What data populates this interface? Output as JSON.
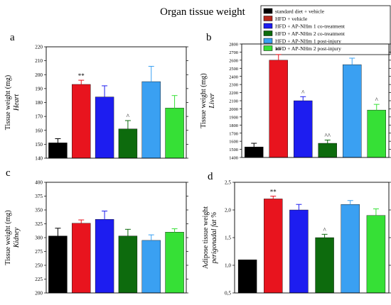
{
  "figure": {
    "title": "Organ tissue weight",
    "legend": {
      "placement": "top-right",
      "entries": [
        {
          "label": "standard diet + vehicle",
          "color": "#000000"
        },
        {
          "label": "HFD + vehicle",
          "color": "#b5281d"
        },
        {
          "label": "HFD + AP-NHm 1 co-treatment",
          "color": "#1d1df0"
        },
        {
          "label": "HFD + AP-NHm 2 co-treatment",
          "color": "#0d6b0d"
        },
        {
          "label": "HFD + AP-NHm 1 post-injury",
          "color": "#3aa0f2"
        },
        {
          "label": "HFD + AP-NHm 2 post-injury",
          "color": "#36e036"
        }
      ]
    }
  },
  "chart_data": [
    {
      "type": "bar",
      "panel_letter": "a",
      "ylabel": "Tissue weight (mg)",
      "ylabel_sub": "Heart",
      "ylim": [
        140,
        220
      ],
      "ytick_step": 10,
      "yticks": [
        "140",
        "150",
        "160",
        "170",
        "180",
        "190",
        "200",
        "210",
        "220"
      ],
      "categories": [
        "standard diet + vehicle",
        "HFD + vehicle",
        "HFD + AP-NHm 1 co-treatment",
        "HFD + AP-NHm 2 co-treatment",
        "HFD + AP-NHm 1 post-injury",
        "HFD + AP-NHm 2 post-injury"
      ],
      "colors": [
        "#000000",
        "#e8141e",
        "#1d1df0",
        "#0d6b0d",
        "#3aa0f2",
        "#36e036"
      ],
      "values": [
        151,
        193,
        184,
        161,
        195,
        176
      ],
      "errors": [
        3,
        3,
        8,
        6,
        11,
        9
      ],
      "annotations": [
        "",
        "**",
        "",
        "^",
        "",
        ""
      ]
    },
    {
      "type": "bar",
      "panel_letter": "b",
      "ylabel": "Tissue weight (mg)",
      "ylabel_sub": "Liver",
      "ylim": [
        1400,
        2800
      ],
      "ytick_step": 100,
      "yticks": [
        "1400",
        "1500",
        "1600",
        "1700",
        "1800",
        "1900",
        "2000",
        "2100",
        "2200",
        "2300",
        "2400",
        "2500",
        "2600",
        "2700",
        "2800"
      ],
      "categories": [
        "standard diet + vehicle",
        "HFD + vehicle",
        "HFD + AP-NHm 1 co-treatment",
        "HFD + AP-NHm 2 co-treatment",
        "HFD + AP-NHm 1 post-injury",
        "HFD + AP-NHm 2 post-injury"
      ],
      "colors": [
        "#000000",
        "#e8141e",
        "#1d1df0",
        "#0d6b0d",
        "#3aa0f2",
        "#36e036"
      ],
      "values": [
        1530,
        2600,
        2100,
        1575,
        2545,
        1985
      ],
      "errors": [
        45,
        70,
        50,
        40,
        80,
        70
      ],
      "annotations": [
        "",
        "**",
        "^",
        "^^",
        "",
        "^"
      ]
    },
    {
      "type": "bar",
      "panel_letter": "c",
      "ylabel": "Tissue weight (mg)",
      "ylabel_sub": "Kidney",
      "ylim": [
        200,
        400
      ],
      "ytick_step": 25,
      "yticks": [
        "200",
        "225",
        "250",
        "275",
        "300",
        "325",
        "350",
        "375",
        "400"
      ],
      "categories": [
        "standard diet + vehicle",
        "HFD + vehicle",
        "HFD + AP-NHm 1 co-treatment",
        "HFD + AP-NHm 2 co-treatment",
        "HFD + AP-NHm 1 post-injury",
        "HFD + AP-NHm 2 post-injury"
      ],
      "colors": [
        "#000000",
        "#e8141e",
        "#1d1df0",
        "#0d6b0d",
        "#3aa0f2",
        "#36e036"
      ],
      "values": [
        303,
        326,
        333,
        303,
        295,
        310
      ],
      "errors": [
        14,
        6,
        15,
        12,
        10,
        6
      ],
      "annotations": [
        "",
        "",
        "",
        "",
        "",
        ""
      ]
    },
    {
      "type": "bar",
      "panel_letter": "d",
      "ylabel": "Adipose tissue weight",
      "ylabel_sub": "perigonadal fat %",
      "ylim": [
        0.5,
        2.5
      ],
      "ytick_step": 0.5,
      "yticks": [
        "0,5",
        "1,0",
        "1,5",
        "2,0",
        "2,5"
      ],
      "categories": [
        "standard diet + vehicle",
        "HFD + vehicle",
        "HFD + AP-NHm 1 co-treatment",
        "HFD + AP-NHm 2 co-treatment",
        "HFD + AP-NHm 1 post-injury",
        "HFD + AP-NHm 2 post-injury"
      ],
      "colors": [
        "#000000",
        "#e8141e",
        "#1d1df0",
        "#0d6b0d",
        "#3aa0f2",
        "#36e036"
      ],
      "values": [
        1.1,
        2.2,
        2.0,
        1.5,
        2.1,
        1.9
      ],
      "errors": [
        0,
        0.05,
        0.1,
        0.06,
        0.07,
        0.12
      ],
      "annotations": [
        "",
        "**",
        "",
        "^",
        "",
        ""
      ]
    }
  ]
}
